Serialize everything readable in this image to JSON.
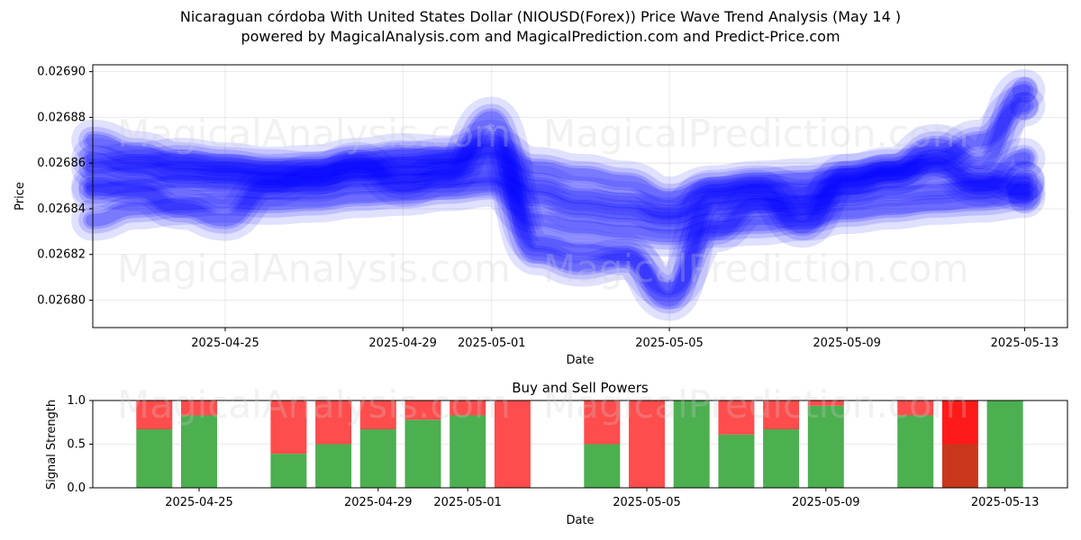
{
  "title": {
    "line1": "Nicaraguan córdoba With United States Dollar (NIOUSD(Forex)) Price Wave Trend Analysis (May 14 )",
    "line2": "powered by MagicalAnalysis.com and MagicalPrediction.com and Predict-Price.com"
  },
  "watermarks": [
    "MagicalAnalysis.com",
    "MagicalPrediction.com"
  ],
  "colors": {
    "wave": "#0000ff",
    "buy": "#4caf50",
    "sell": "#ff4c4c",
    "sell_strong": "#ff1a1a",
    "buy_dark": "#c8371b"
  },
  "chart_data": [
    {
      "type": "area",
      "title": "",
      "xlabel": "Date",
      "ylabel": "Price",
      "ylim": [
        0.026788,
        0.026903
      ],
      "y_ticks": [
        "0.02680",
        "0.02682",
        "0.02684",
        "0.02686",
        "0.02688",
        "0.02690"
      ],
      "x_ticks": [
        "2025-04-25",
        "2025-04-29",
        "2025-05-01",
        "2025-05-05",
        "2025-05-09",
        "2025-05-13"
      ],
      "grid": true,
      "dates": [
        "2025-04-22",
        "2025-04-23",
        "2025-04-24",
        "2025-04-25",
        "2025-04-26",
        "2025-04-27",
        "2025-04-28",
        "2025-04-29",
        "2025-04-30",
        "2025-05-01",
        "2025-05-02",
        "2025-05-03",
        "2025-05-04",
        "2025-05-05",
        "2025-05-06",
        "2025-05-07",
        "2025-05-08",
        "2025-05-09",
        "2025-05-10",
        "2025-05-11",
        "2025-05-12",
        "2025-05-13"
      ],
      "series": [
        {
          "values": [
            0.026848,
            0.02685,
            0.026852,
            0.026851,
            0.02685,
            0.02685,
            0.026852,
            0.026853,
            0.026853,
            0.026854,
            0.026845,
            0.02684,
            0.026838,
            0.026836,
            0.02684,
            0.026842,
            0.026843,
            0.026845,
            0.026847,
            0.026848,
            0.02685,
            0.026852
          ]
        },
        {
          "values": [
            0.026862,
            0.026858,
            0.026855,
            0.026855,
            0.026853,
            0.026852,
            0.026856,
            0.026857,
            0.026858,
            0.026862,
            0.02685,
            0.026845,
            0.026843,
            0.026838,
            0.026848,
            0.02685,
            0.026847,
            0.026852,
            0.026855,
            0.02686,
            0.026852,
            0.026848
          ]
        },
        {
          "values": [
            0.026835,
            0.02684,
            0.026842,
            0.026843,
            0.026842,
            0.026843,
            0.026845,
            0.026846,
            0.026848,
            0.02685,
            0.026835,
            0.026832,
            0.02683,
            0.026828,
            0.026832,
            0.026833,
            0.026835,
            0.026838,
            0.02684,
            0.026842,
            0.026843,
            0.026845
          ]
        },
        {
          "values": [
            0.02687,
            0.026865,
            0.02686,
            0.026858,
            0.026857,
            0.026856,
            0.026858,
            0.02686,
            0.026862,
            0.02687,
            0.02682,
            0.026815,
            0.026818,
            0.026805,
            0.02683,
            0.026842,
            0.02684,
            0.02685,
            0.026855,
            0.026862,
            0.02687,
            0.026885
          ]
        },
        {
          "values": [
            0.02685,
            0.026848,
            0.02684,
            0.026835,
            0.02685,
            0.026855,
            0.02686,
            0.02685,
            0.026855,
            0.02688,
            0.026825,
            0.026822,
            0.02682,
            0.0268,
            0.026845,
            0.026848,
            0.026832,
            0.026855,
            0.026858,
            0.026868,
            0.02686,
            0.026892
          ]
        },
        {
          "values": [
            0.026858,
            0.02686,
            0.026862,
            0.02686,
            0.026858,
            0.026859,
            0.026862,
            0.026864,
            0.026863,
            0.026866,
            0.026858,
            0.026855,
            0.026852,
            0.026845,
            0.02685,
            0.026852,
            0.026853,
            0.026855,
            0.026857,
            0.026858,
            0.02685,
            0.026862
          ]
        }
      ]
    },
    {
      "type": "bar",
      "title": "Buy and Sell Powers",
      "xlabel": "Date",
      "ylabel": "Signal Strength",
      "ylim": [
        0,
        1.0
      ],
      "y_ticks": [
        "0.0",
        "0.5",
        "1.0"
      ],
      "x_ticks": [
        "2025-04-25",
        "2025-04-29",
        "2025-05-01",
        "2025-05-05",
        "2025-05-09",
        "2025-05-13"
      ],
      "grid": true,
      "categories": [
        "2025-04-24",
        "2025-04-25",
        "2025-04-27",
        "2025-04-28",
        "2025-04-29",
        "2025-04-30",
        "2025-05-01",
        "2025-05-02",
        "2025-05-04",
        "2025-05-05",
        "2025-05-06",
        "2025-05-07",
        "2025-05-08",
        "2025-05-09",
        "2025-05-11",
        "2025-05-12",
        "2025-05-13"
      ],
      "series": [
        {
          "name": "Buy",
          "values": [
            0.67,
            0.83,
            0.39,
            0.5,
            0.67,
            0.78,
            0.83,
            0.0,
            0.5,
            0.0,
            1.0,
            0.61,
            0.67,
            0.94,
            0.83,
            0.5,
            1.0
          ]
        },
        {
          "name": "Sell",
          "values": [
            0.33,
            0.17,
            0.61,
            0.5,
            0.33,
            0.22,
            0.17,
            1.0,
            0.5,
            1.0,
            0.0,
            0.39,
            0.33,
            0.06,
            0.17,
            0.5,
            0.0
          ]
        }
      ]
    }
  ]
}
